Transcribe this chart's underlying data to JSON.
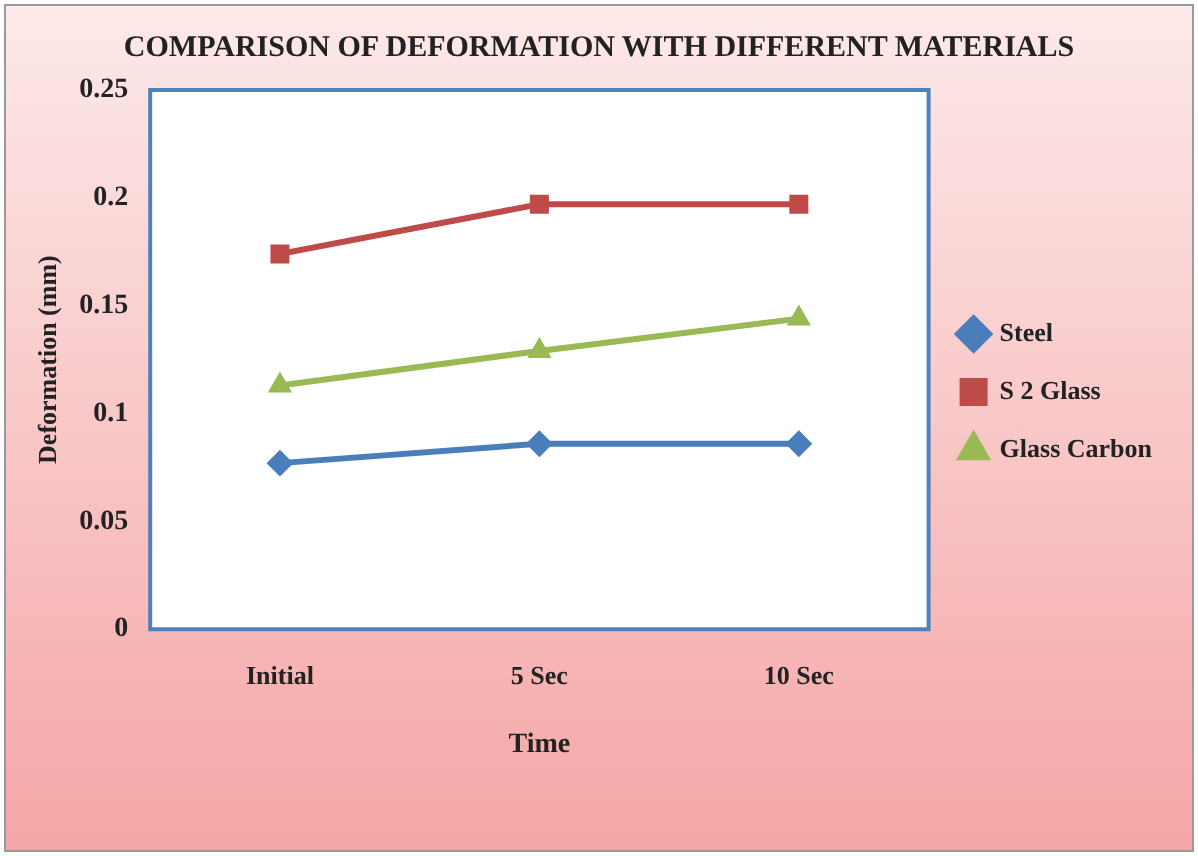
{
  "chart_data": {
    "type": "line",
    "title": "COMPARISON OF DEFORMATION WITH DIFFERENT MATERIALS",
    "xlabel": "Time",
    "ylabel": "Deformation (mm)",
    "categories": [
      "Initial",
      "5 Sec",
      "10 Sec"
    ],
    "series": [
      {
        "name": "Steel",
        "color": "#4a7ebb",
        "marker": "diamond",
        "values": [
          0.077,
          0.086,
          0.086
        ]
      },
      {
        "name": "S 2 Glass",
        "color": "#be4b48",
        "marker": "square",
        "values": [
          0.174,
          0.197,
          0.197
        ]
      },
      {
        "name": "Glass Carbon",
        "color": "#98b954",
        "marker": "triangle",
        "values": [
          0.113,
          0.129,
          0.144
        ]
      }
    ],
    "ylim": [
      0,
      0.25
    ],
    "yticks": [
      0,
      0.05,
      0.1,
      0.15,
      0.2,
      0.25
    ],
    "grid": false,
    "legend": "right"
  }
}
